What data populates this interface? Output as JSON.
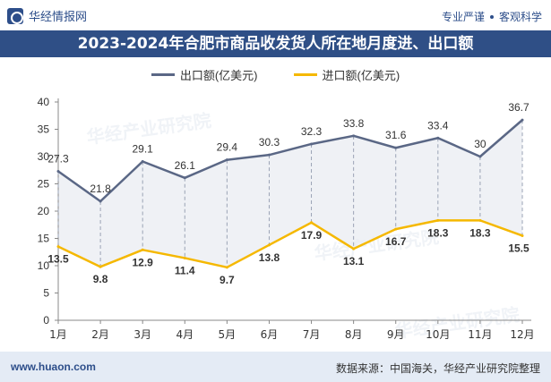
{
  "header": {
    "brand": "华经情报网",
    "slogan_left": "专业严谨",
    "slogan_right": "客观科学"
  },
  "title": "2023-2024年合肥市商品收发货人所在地月度进、出口额",
  "footer": {
    "website": "www.huaon.com",
    "source": "数据来源：中国海关，华经产业研究院整理"
  },
  "watermarks": [
    "华经产业研究院",
    "华经产业研究院",
    "华经产业研究院"
  ],
  "colors": {
    "export": "#5a6785",
    "import": "#f5b800",
    "title_bg": "#2f4f86",
    "footer_bg": "#e4ebf5"
  },
  "chart_data": {
    "type": "line",
    "categories": [
      "1月",
      "2月",
      "3月",
      "4月",
      "5月",
      "6月",
      "7月",
      "8月",
      "9月",
      "10月",
      "11月",
      "12月"
    ],
    "series": [
      {
        "name": "出口额(亿美元)",
        "values": [
          27.3,
          21.8,
          29.1,
          26.1,
          29.4,
          30.3,
          32.3,
          33.8,
          31.6,
          33.4,
          30,
          36.7
        ]
      },
      {
        "name": "进口额(亿美元)",
        "values": [
          13.5,
          9.8,
          12.9,
          11.4,
          9.7,
          13.8,
          17.9,
          13.1,
          16.7,
          18.3,
          18.3,
          15.5
        ]
      }
    ],
    "yticks": [
      0,
      5,
      10,
      15,
      20,
      25,
      30,
      35,
      40
    ],
    "ylim": [
      0,
      40
    ],
    "grid": false,
    "legend_position": "top-center"
  }
}
